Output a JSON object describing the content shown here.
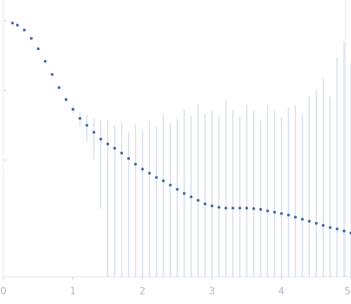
{
  "chart_data": {
    "type": "scatter",
    "yscale": "log",
    "x": [
      0.13,
      0.2,
      0.3,
      0.4,
      0.5,
      0.6,
      0.7,
      0.8,
      0.9,
      1.0,
      1.1,
      1.2,
      1.3,
      1.4,
      1.5,
      1.6,
      1.7,
      1.8,
      1.9,
      2.0,
      2.1,
      2.2,
      2.3,
      2.4,
      2.5,
      2.6,
      2.7,
      2.8,
      2.9,
      3.0,
      3.1,
      3.2,
      3.3,
      3.4,
      3.5,
      3.6,
      3.7,
      3.8,
      3.9,
      4.0,
      4.1,
      4.2,
      4.3,
      4.4,
      4.5,
      4.6,
      4.7,
      4.8,
      4.9,
      5.0
    ],
    "series": [
      {
        "color": "#3b66c0",
        "error_color": "#b9cbe9",
        "values": [
          0.933,
          0.871,
          0.741,
          0.562,
          0.398,
          0.263,
          0.17,
          0.11,
          0.0741,
          0.0537,
          0.0398,
          0.0316,
          0.0251,
          0.02,
          0.017,
          0.0148,
          0.0126,
          0.0105,
          0.00871,
          0.00741,
          0.00646,
          0.00562,
          0.00501,
          0.00437,
          0.0038,
          0.00331,
          0.00295,
          0.00263,
          0.00234,
          0.00219,
          0.00209,
          0.00204,
          0.00204,
          0.00204,
          0.00204,
          0.002,
          0.00195,
          0.00186,
          0.00178,
          0.0017,
          0.00162,
          0.00151,
          0.00141,
          0.00132,
          0.00123,
          0.00115,
          0.00107,
          0.00102,
          0.000955,
          0.000891
        ],
        "errors": [
          0.002,
          0.002,
          0.002,
          0.002,
          0.002,
          0.002,
          0.002,
          0.002,
          0.004,
          0.006,
          0.009,
          0.013,
          0.015,
          0.018,
          0.02,
          0.017,
          0.022,
          0.015,
          0.024,
          0.02,
          0.03,
          0.025,
          0.04,
          0.03,
          0.035,
          0.05,
          0.04,
          0.06,
          0.045,
          0.05,
          0.04,
          0.07,
          0.05,
          0.04,
          0.06,
          0.05,
          0.035,
          0.06,
          0.05,
          0.04,
          0.055,
          0.06,
          0.045,
          0.08,
          0.1,
          0.15,
          0.08,
          0.3,
          0.5,
          0.25
        ]
      }
    ],
    "xlim": [
      0,
      5
    ],
    "xticks": [
      0,
      1,
      2,
      3,
      4,
      5
    ],
    "ylim": [
      0.000209,
      2
    ],
    "yticks": [
      1,
      0.1,
      0.01
    ]
  }
}
